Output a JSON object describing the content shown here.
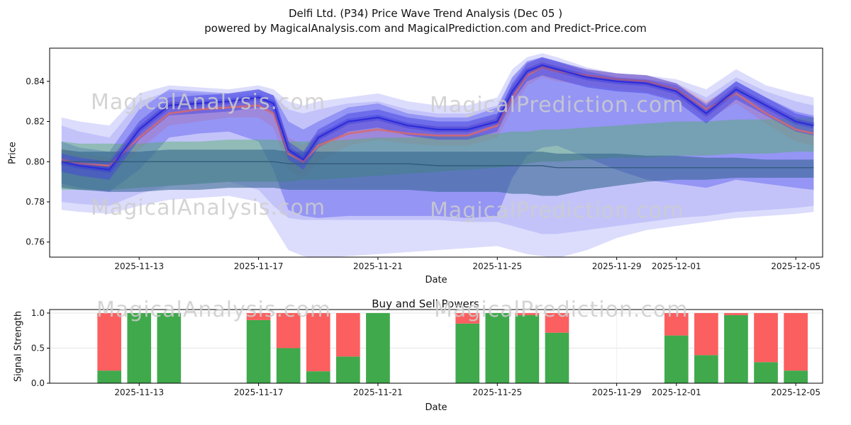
{
  "chart_data": [
    {
      "type": "area",
      "title": "Delfi Ltd. (P34) Price Wave Trend Analysis (Dec 05 )",
      "subtitle": "powered by MagicalAnalysis.com and MagicalPrediction.com and Predict-Price.com",
      "xlabel": "Date",
      "ylabel": "Price",
      "ylim": [
        0.7525,
        0.8565
      ],
      "x_range": [
        0,
        25.9
      ],
      "x_unit": "days since 2025-11-10",
      "yticks": [
        0.76,
        0.78,
        0.8,
        0.82,
        0.84
      ],
      "ytick_labels": [
        "0.76",
        "0.78",
        "0.80",
        "0.82",
        "0.84"
      ],
      "xticks": [
        {
          "day": 3,
          "label": "2025-11-13"
        },
        {
          "day": 7,
          "label": "2025-11-17"
        },
        {
          "day": 11,
          "label": "2025-11-21"
        },
        {
          "day": 15,
          "label": "2025-11-25"
        },
        {
          "day": 19,
          "label": "2025-11-29"
        },
        {
          "day": 21,
          "label": "2025-12-01"
        },
        {
          "day": 25,
          "label": "2025-12-05"
        }
      ],
      "grid": false,
      "legend": "none",
      "watermarks": [
        "MagicalAnalysis.com",
        "MagicalPrediction.com"
      ],
      "x": [
        0.4,
        1,
        2,
        3,
        4,
        5,
        6,
        7,
        7.5,
        8,
        8.5,
        9,
        10,
        11,
        12,
        13,
        14,
        15,
        15.5,
        16,
        16.5,
        17,
        18,
        19,
        20,
        21,
        22,
        23,
        24,
        25,
        25.6
      ],
      "bands": [
        {
          "name": "outer-envelope",
          "color": "#8c8cf6",
          "opacity": 0.3,
          "upper": [
            0.822,
            0.82,
            0.818,
            0.834,
            0.838,
            0.837,
            0.836,
            0.838,
            0.836,
            0.83,
            0.828,
            0.83,
            0.832,
            0.834,
            0.83,
            0.828,
            0.828,
            0.832,
            0.846,
            0.852,
            0.854,
            0.852,
            0.847,
            0.844,
            0.843,
            0.841,
            0.836,
            0.846,
            0.838,
            0.834,
            0.832
          ],
          "lower": [
            0.776,
            0.775,
            0.774,
            0.778,
            0.781,
            0.782,
            0.783,
            0.78,
            0.768,
            0.756,
            0.753,
            0.752,
            0.753,
            0.754,
            0.755,
            0.756,
            0.757,
            0.758,
            0.756,
            0.754,
            0.753,
            0.752,
            0.756,
            0.762,
            0.766,
            0.768,
            0.77,
            0.772,
            0.773,
            0.774,
            0.775
          ]
        },
        {
          "name": "mid-envelope",
          "color": "#7d7df3",
          "opacity": 0.26,
          "upper": [
            0.818,
            0.815,
            0.812,
            0.83,
            0.835,
            0.834,
            0.833,
            0.835,
            0.833,
            0.826,
            0.824,
            0.826,
            0.829,
            0.83,
            0.826,
            0.824,
            0.824,
            0.828,
            0.842,
            0.85,
            0.852,
            0.85,
            0.845,
            0.842,
            0.841,
            0.839,
            0.832,
            0.842,
            0.835,
            0.83,
            0.828
          ],
          "lower": [
            0.78,
            0.779,
            0.778,
            0.784,
            0.788,
            0.789,
            0.79,
            0.786,
            0.778,
            0.772,
            0.771,
            0.771,
            0.771,
            0.771,
            0.771,
            0.771,
            0.77,
            0.77,
            0.768,
            0.766,
            0.764,
            0.764,
            0.766,
            0.768,
            0.77,
            0.772,
            0.773,
            0.775,
            0.776,
            0.777,
            0.778
          ]
        },
        {
          "name": "prediction-band",
          "color": "#e88a8a",
          "opacity": 0.38,
          "upper": [
            0.807,
            0.804,
            0.802,
            0.818,
            0.83,
            0.83,
            0.83,
            0.832,
            0.829,
            0.812,
            0.808,
            0.814,
            0.82,
            0.822,
            0.819,
            0.818,
            0.818,
            0.823,
            0.838,
            0.848,
            0.851,
            0.849,
            0.846,
            0.844,
            0.843,
            0.839,
            0.83,
            0.838,
            0.829,
            0.822,
            0.82
          ],
          "lower": [
            0.795,
            0.793,
            0.792,
            0.806,
            0.818,
            0.82,
            0.822,
            0.822,
            0.817,
            0.796,
            0.792,
            0.8,
            0.808,
            0.811,
            0.809,
            0.808,
            0.808,
            0.812,
            0.826,
            0.838,
            0.842,
            0.84,
            0.838,
            0.836,
            0.835,
            0.831,
            0.821,
            0.829,
            0.819,
            0.81,
            0.808
          ]
        },
        {
          "name": "price-band",
          "color": "#5656ee",
          "opacity": 0.42,
          "upper": [
            0.81,
            0.807,
            0.805,
            0.826,
            0.836,
            0.835,
            0.834,
            0.836,
            0.833,
            0.82,
            0.816,
            0.82,
            0.827,
            0.829,
            0.824,
            0.822,
            0.822,
            0.827,
            0.842,
            0.85,
            0.852,
            0.85,
            0.845,
            0.842,
            0.841,
            0.838,
            0.829,
            0.84,
            0.832,
            0.825,
            0.823
          ],
          "lower": [
            0.789,
            0.787,
            0.785,
            0.796,
            0.812,
            0.814,
            0.815,
            0.81,
            0.796,
            0.776,
            0.773,
            0.772,
            0.773,
            0.773,
            0.773,
            0.773,
            0.772,
            0.773,
            0.792,
            0.803,
            0.807,
            0.808,
            0.802,
            0.796,
            0.791,
            0.789,
            0.787,
            0.791,
            0.789,
            0.787,
            0.786
          ]
        },
        {
          "name": "trend-green-band",
          "color": "#4db05a",
          "opacity": 0.42,
          "upper": [
            0.81,
            0.809,
            0.809,
            0.809,
            0.81,
            0.81,
            0.811,
            0.811,
            0.811,
            0.81,
            0.81,
            0.81,
            0.811,
            0.812,
            0.812,
            0.813,
            0.813,
            0.814,
            0.815,
            0.815,
            0.816,
            0.816,
            0.817,
            0.818,
            0.819,
            0.82,
            0.82,
            0.821,
            0.821,
            0.822,
            0.822
          ],
          "lower": [
            0.786,
            0.786,
            0.786,
            0.787,
            0.788,
            0.789,
            0.79,
            0.79,
            0.79,
            0.79,
            0.791,
            0.791,
            0.792,
            0.793,
            0.794,
            0.795,
            0.796,
            0.797,
            0.798,
            0.799,
            0.8,
            0.8,
            0.801,
            0.802,
            0.802,
            0.803,
            0.803,
            0.804,
            0.804,
            0.805,
            0.805
          ]
        },
        {
          "name": "trend-teal-band",
          "color": "#2e618a",
          "opacity": 0.55,
          "upper": [
            0.806,
            0.805,
            0.805,
            0.805,
            0.806,
            0.806,
            0.806,
            0.806,
            0.806,
            0.805,
            0.805,
            0.805,
            0.805,
            0.805,
            0.805,
            0.805,
            0.805,
            0.805,
            0.805,
            0.805,
            0.805,
            0.804,
            0.804,
            0.804,
            0.803,
            0.803,
            0.802,
            0.802,
            0.801,
            0.801,
            0.801
          ],
          "lower": [
            0.787,
            0.786,
            0.785,
            0.785,
            0.786,
            0.786,
            0.787,
            0.787,
            0.787,
            0.786,
            0.786,
            0.786,
            0.786,
            0.786,
            0.786,
            0.785,
            0.785,
            0.785,
            0.784,
            0.784,
            0.783,
            0.783,
            0.786,
            0.788,
            0.79,
            0.791,
            0.791,
            0.792,
            0.792,
            0.792,
            0.792
          ]
        },
        {
          "name": "price-core-band",
          "color": "#4646e2",
          "opacity": 0.5,
          "upper": [
            0.804,
            0.802,
            0.8,
            0.82,
            0.832,
            0.833,
            0.834,
            0.836,
            0.833,
            0.81,
            0.805,
            0.816,
            0.824,
            0.826,
            0.822,
            0.82,
            0.82,
            0.824,
            0.839,
            0.849,
            0.852,
            0.85,
            0.846,
            0.844,
            0.843,
            0.839,
            0.828,
            0.84,
            0.832,
            0.824,
            0.822
          ],
          "lower": [
            0.795,
            0.793,
            0.791,
            0.811,
            0.823,
            0.824,
            0.825,
            0.827,
            0.824,
            0.801,
            0.796,
            0.807,
            0.815,
            0.817,
            0.813,
            0.811,
            0.811,
            0.815,
            0.83,
            0.84,
            0.843,
            0.841,
            0.837,
            0.835,
            0.834,
            0.83,
            0.819,
            0.831,
            0.823,
            0.815,
            0.813
          ]
        }
      ],
      "lines": [
        {
          "name": "prediction-wave",
          "color": "#d96a6a",
          "width": 1.6,
          "glow": 4,
          "values": [
            0.801,
            0.799,
            0.798,
            0.812,
            0.824,
            0.826,
            0.827,
            0.828,
            0.824,
            0.804,
            0.8,
            0.808,
            0.814,
            0.816,
            0.814,
            0.813,
            0.813,
            0.818,
            0.832,
            0.843,
            0.847,
            0.845,
            0.843,
            0.841,
            0.84,
            0.836,
            0.826,
            0.834,
            0.824,
            0.816,
            0.814
          ]
        },
        {
          "name": "price-wave",
          "color": "#2d2dd8",
          "width": 2.2,
          "glow": 8,
          "values": [
            0.8,
            0.798,
            0.796,
            0.816,
            0.828,
            0.829,
            0.83,
            0.832,
            0.829,
            0.806,
            0.801,
            0.812,
            0.82,
            0.822,
            0.818,
            0.816,
            0.816,
            0.82,
            0.835,
            0.845,
            0.848,
            0.846,
            0.842,
            0.84,
            0.839,
            0.835,
            0.824,
            0.836,
            0.828,
            0.82,
            0.818
          ]
        },
        {
          "name": "baseline",
          "color": "#2f5876",
          "width": 1.3,
          "values": [
            0.8,
            0.8,
            0.8,
            0.8,
            0.8,
            0.8,
            0.8,
            0.8,
            0.8,
            0.799,
            0.799,
            0.799,
            0.799,
            0.799,
            0.799,
            0.798,
            0.798,
            0.798,
            0.798,
            0.798,
            0.798,
            0.797,
            0.797,
            0.797,
            0.797,
            0.797,
            0.797,
            0.797,
            0.797,
            0.797,
            0.797
          ]
        }
      ]
    },
    {
      "type": "bar",
      "title": "Buy and Sell Powers",
      "xlabel": "Date",
      "ylabel": "Signal Strength",
      "ylim": [
        0,
        1.05
      ],
      "x_range": [
        0,
        25.9
      ],
      "yticks": [
        0,
        0.5,
        1
      ],
      "ytick_labels": [
        "0.0",
        "0.5",
        "1.0"
      ],
      "xticks": [
        {
          "day": 3,
          "label": "2025-11-13"
        },
        {
          "day": 7,
          "label": "2025-11-17"
        },
        {
          "day": 11,
          "label": "2025-11-21"
        },
        {
          "day": 15,
          "label": "2025-11-25"
        },
        {
          "day": 19,
          "label": "2025-11-29"
        },
        {
          "day": 21,
          "label": "2025-12-01"
        },
        {
          "day": 25,
          "label": "2025-12-05"
        }
      ],
      "grid": true,
      "stacked": true,
      "bar_total": 1.0,
      "bar_width_days": 0.8,
      "colors": {
        "buy": "#3fa94c",
        "sell": "#fb5f5f"
      },
      "watermarks": [
        "MagicalAnalysis.com",
        "MagicalPrediction.com"
      ],
      "bars": [
        {
          "date": "2025-11-12",
          "day": 2,
          "buy": 0.18,
          "sell": 0.82
        },
        {
          "date": "2025-11-13",
          "day": 3,
          "buy": 1.0,
          "sell": 0.0
        },
        {
          "date": "2025-11-14",
          "day": 4,
          "buy": 1.0,
          "sell": 0.0
        },
        {
          "date": "2025-11-17",
          "day": 7,
          "buy": 0.9,
          "sell": 0.1
        },
        {
          "date": "2025-11-18",
          "day": 8,
          "buy": 0.5,
          "sell": 0.5
        },
        {
          "date": "2025-11-19",
          "day": 9,
          "buy": 0.17,
          "sell": 0.83
        },
        {
          "date": "2025-11-20",
          "day": 10,
          "buy": 0.38,
          "sell": 0.62
        },
        {
          "date": "2025-11-21",
          "day": 11,
          "buy": 1.0,
          "sell": 0.0
        },
        {
          "date": "2025-11-24",
          "day": 14,
          "buy": 0.85,
          "sell": 0.15
        },
        {
          "date": "2025-11-25",
          "day": 15,
          "buy": 1.0,
          "sell": 0.0
        },
        {
          "date": "2025-11-26",
          "day": 16,
          "buy": 0.97,
          "sell": 0.03
        },
        {
          "date": "2025-11-27",
          "day": 17,
          "buy": 0.72,
          "sell": 0.28
        },
        {
          "date": "2025-12-01",
          "day": 21,
          "buy": 0.68,
          "sell": 0.32
        },
        {
          "date": "2025-12-02",
          "day": 22,
          "buy": 0.4,
          "sell": 0.6
        },
        {
          "date": "2025-12-03",
          "day": 23,
          "buy": 0.97,
          "sell": 0.03
        },
        {
          "date": "2025-12-04",
          "day": 24,
          "buy": 0.3,
          "sell": 0.7
        },
        {
          "date": "2025-12-05",
          "day": 25,
          "buy": 0.18,
          "sell": 0.82
        }
      ]
    }
  ]
}
